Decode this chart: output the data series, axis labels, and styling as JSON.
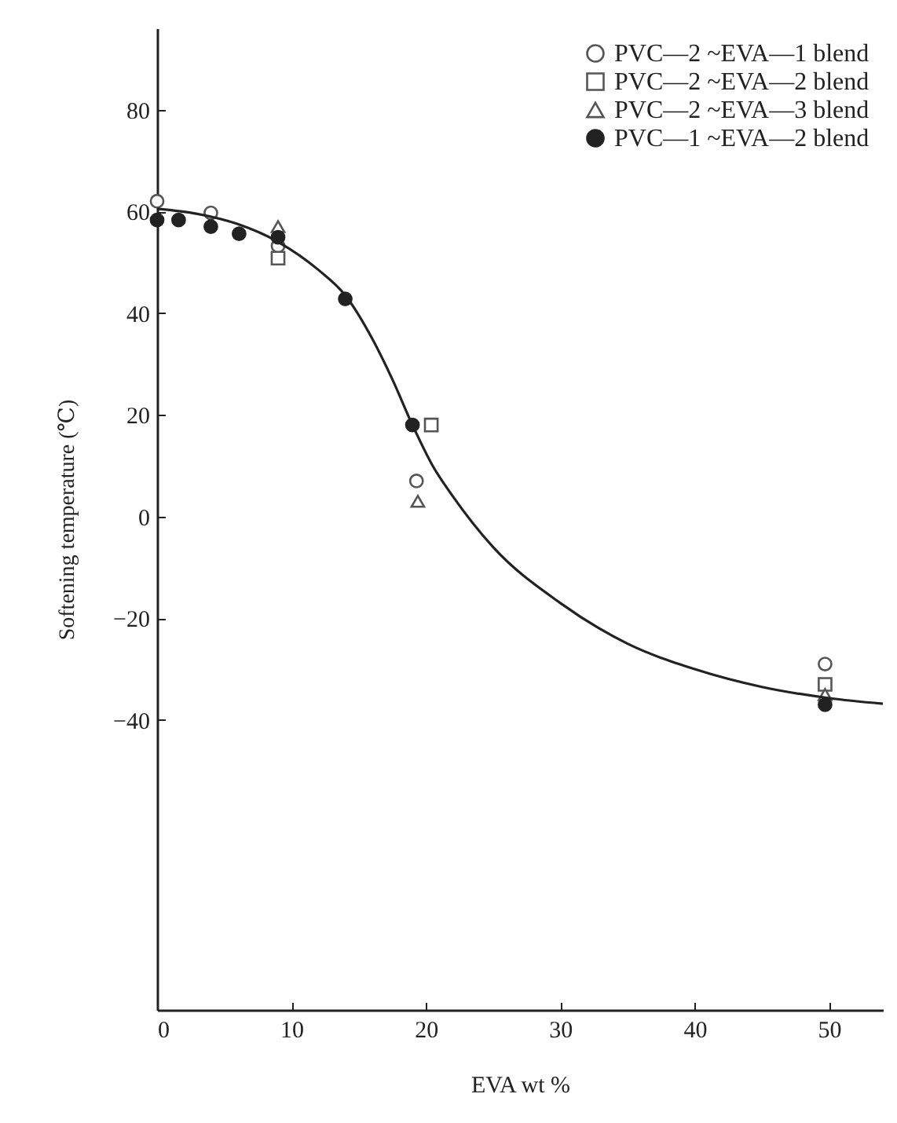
{
  "chart_data": {
    "type": "scatter",
    "xlabel": "EVA wt %",
    "ylabel": "Softening temperature (℃)",
    "xlim": [
      0,
      54
    ],
    "ylim": [
      -97,
      96
    ],
    "xticks": [
      0,
      10,
      20,
      30,
      40,
      50
    ],
    "yticks": [
      -40,
      -20,
      0,
      20,
      40,
      60,
      80
    ],
    "grid": false,
    "legend": "top right",
    "series": [
      {
        "name": "PVC—2 ~EVA—1 blend",
        "color": "#555555",
        "marker": "circle",
        "x": [
          0,
          4.0,
          9.0,
          19.3,
          49.7
        ],
        "values": [
          62,
          59.7,
          53.2,
          7,
          -29
        ]
      },
      {
        "name": "PVC—2 ~EVA—2 blend",
        "color": "#555555",
        "marker": "square",
        "x": [
          9.0,
          20.4,
          49.7
        ],
        "values": [
          50.8,
          18,
          -33
        ]
      },
      {
        "name": "PVC—2 ~EVA—3 blend",
        "color": "#555555",
        "marker": "triangle",
        "x": [
          9.0,
          19.4,
          49.7
        ],
        "values": [
          57,
          3,
          -35
        ]
      },
      {
        "name": "PVC—1 ~EVA—2 blend",
        "color": "#222222",
        "marker": "circle",
        "x": [
          0,
          1.6,
          4.0,
          6.1,
          9.0,
          14.0,
          19.0,
          49.7
        ],
        "values": [
          58.3,
          58.3,
          57,
          55.6,
          54.9,
          42.8,
          18,
          -37
        ]
      },
      {
        "type": "line",
        "color": "#222222",
        "marker": "none",
        "x": [
          0,
          3,
          6,
          9,
          12,
          14,
          16,
          17.5,
          19,
          20.5,
          22,
          25,
          30,
          35,
          40,
          45,
          50,
          54
        ],
        "values": [
          60.5,
          59.5,
          57.5,
          54,
          48.5,
          43.5,
          35,
          27,
          18,
          10,
          4,
          -6,
          -17,
          -25,
          -30,
          -33.5,
          -35.7,
          -36.8
        ]
      }
    ]
  }
}
